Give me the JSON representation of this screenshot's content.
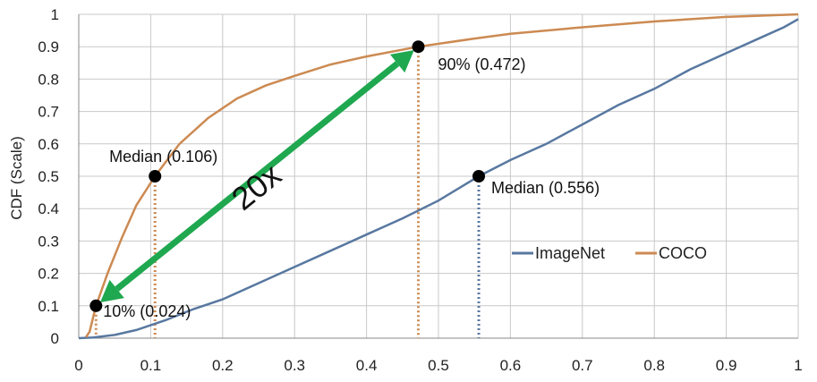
{
  "chart_data": {
    "type": "line",
    "ylabel": "CDF (Scale)",
    "xlabel": "",
    "xlim": [
      0,
      1
    ],
    "ylim": [
      0,
      1
    ],
    "x_ticks": [
      0,
      0.1,
      0.2,
      0.3,
      0.4,
      0.5,
      0.6,
      0.7,
      0.8,
      0.9,
      1
    ],
    "x_tick_labels": [
      "0",
      "0.1",
      "0.2",
      "0.3",
      "0.4",
      "0.5",
      "0.6",
      "0.7",
      "0.8",
      "0.9",
      "1"
    ],
    "y_ticks": [
      0,
      0.1,
      0.2,
      0.3,
      0.4,
      0.5,
      0.6,
      0.7,
      0.8,
      0.9,
      1
    ],
    "y_tick_labels": [
      "0",
      "0.1",
      "0.2",
      "0.3",
      "0.4",
      "0.5",
      "0.6",
      "0.7",
      "0.8",
      "0.9",
      "1"
    ],
    "grid": true,
    "legend_position": "right-middle",
    "series": [
      {
        "name": "ImageNet",
        "color": "#5878a0",
        "x": [
          0,
          0.02,
          0.05,
          0.08,
          0.12,
          0.16,
          0.2,
          0.25,
          0.3,
          0.35,
          0.4,
          0.45,
          0.5,
          0.556,
          0.6,
          0.65,
          0.7,
          0.75,
          0.8,
          0.85,
          0.9,
          0.95,
          0.98,
          1
        ],
        "y": [
          0,
          0.002,
          0.01,
          0.025,
          0.055,
          0.09,
          0.12,
          0.17,
          0.22,
          0.27,
          0.32,
          0.37,
          0.425,
          0.5,
          0.55,
          0.6,
          0.66,
          0.72,
          0.77,
          0.83,
          0.88,
          0.93,
          0.96,
          0.985
        ]
      },
      {
        "name": "COCO",
        "color": "#cc8a52",
        "x": [
          0.01,
          0.015,
          0.024,
          0.04,
          0.06,
          0.08,
          0.106,
          0.14,
          0.18,
          0.22,
          0.26,
          0.3,
          0.35,
          0.4,
          0.472,
          0.55,
          0.6,
          0.7,
          0.8,
          0.9,
          1
        ],
        "y": [
          0.003,
          0.02,
          0.1,
          0.2,
          0.31,
          0.41,
          0.5,
          0.6,
          0.68,
          0.74,
          0.78,
          0.81,
          0.845,
          0.87,
          0.9,
          0.925,
          0.94,
          0.96,
          0.978,
          0.992,
          1.0
        ]
      }
    ],
    "markers": [
      {
        "x": 0.024,
        "y": 0.1,
        "label": "10% (0.024)",
        "drop_color": "#cc8a52"
      },
      {
        "x": 0.106,
        "y": 0.5,
        "label": "Median (0.106)",
        "drop_color": "#cc8a52"
      },
      {
        "x": 0.472,
        "y": 0.9,
        "label": "90% (0.472)",
        "drop_color": "#cc8a52"
      },
      {
        "x": 0.556,
        "y": 0.5,
        "label": "Median (0.556)",
        "drop_color": "#5878a0"
      }
    ],
    "arrow": {
      "from": [
        0.024,
        0.1
      ],
      "to": [
        0.472,
        0.9
      ],
      "label": "20x",
      "color": "#1fa84f"
    }
  }
}
